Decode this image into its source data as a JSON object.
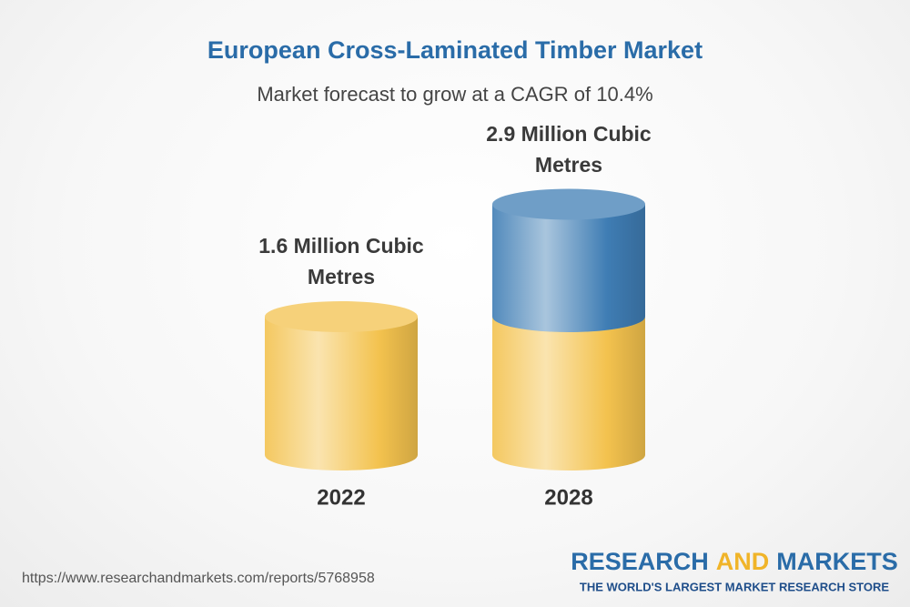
{
  "chart_data": {
    "type": "cylinder",
    "title": "European Cross-Laminated Timber Market",
    "subtitle": "Market forecast to grow at a CAGR of 10.4%",
    "categories": [
      "2022",
      "2028"
    ],
    "values": [
      1.6,
      2.9
    ],
    "value_labels": [
      "1.6 Million Cubic Metres",
      "2.9 Million Cubic Metres"
    ],
    "colors": [
      "#f3c24e",
      "#3f7db4"
    ]
  },
  "footer": {
    "url": "https://www.researchandmarkets.com/reports/5768958",
    "brand_1": "RESEARCH",
    "brand_2": "AND",
    "brand_3": "MARKETS",
    "tagline": "THE WORLD'S LARGEST MARKET RESEARCH STORE"
  }
}
